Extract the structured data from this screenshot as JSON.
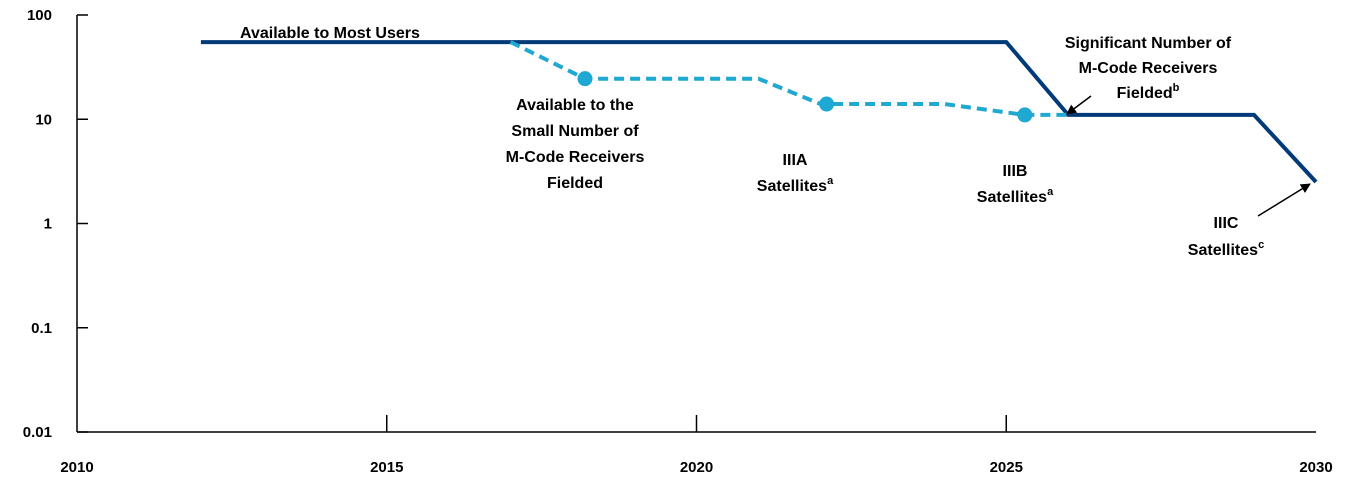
{
  "chart_data": {
    "type": "line",
    "title": "",
    "xlabel": "",
    "ylabel": "",
    "xlim": [
      2010,
      2030
    ],
    "ylim": [
      0.01,
      100
    ],
    "yscale": "log",
    "grid": false,
    "x_ticks": [
      {
        "value": 2010,
        "label": "2010"
      },
      {
        "value": 2015,
        "label": "2015"
      },
      {
        "value": 2020,
        "label": "2020"
      },
      {
        "value": 2025,
        "label": "2025"
      },
      {
        "value": 2030,
        "label": "2030"
      }
    ],
    "y_ticks": [
      {
        "value": 100,
        "label": "100"
      },
      {
        "value": 10,
        "label": "10"
      },
      {
        "value": 1,
        "label": "1"
      },
      {
        "value": 0.1,
        "label": "0.1"
      },
      {
        "value": 0.01,
        "label": "0.01"
      }
    ],
    "series": [
      {
        "style": "solid",
        "color": "#003a78",
        "points": [
          [
            2012,
            55
          ],
          [
            2025,
            55
          ],
          [
            2026,
            11
          ],
          [
            2029,
            11
          ],
          [
            2030,
            2.5
          ]
        ]
      },
      {
        "style": "dashed",
        "color": "#1fa8d2",
        "points": [
          [
            2017,
            55
          ],
          [
            2018.2,
            24.5
          ],
          [
            2021,
            24.5
          ],
          [
            2022,
            14
          ],
          [
            2024,
            14
          ],
          [
            2025.3,
            11
          ],
          [
            2026,
            11
          ]
        ],
        "markers": [
          [
            2018.2,
            24.5
          ],
          [
            2022.1,
            14
          ],
          [
            2025.3,
            11
          ]
        ]
      }
    ],
    "annotations": [
      {
        "id": "most-users",
        "lines": [
          "Available to Most Users"
        ],
        "superscript": ""
      },
      {
        "id": "small-number",
        "lines": [
          "Available to the",
          "Small Number of",
          "M-Code Receivers",
          "Fielded"
        ],
        "superscript": ""
      },
      {
        "id": "iiia",
        "lines": [
          "IIIA",
          "Satellites"
        ],
        "superscript": "a"
      },
      {
        "id": "iiib",
        "lines": [
          "IIIB",
          "Satellites"
        ],
        "superscript": "a"
      },
      {
        "id": "significant",
        "lines": [
          "Significant Number of",
          "M-Code Receivers",
          "Fielded"
        ],
        "superscript": "b"
      },
      {
        "id": "iiic",
        "lines": [
          "IIIC",
          "Satellites"
        ],
        "superscript": "c"
      }
    ]
  }
}
